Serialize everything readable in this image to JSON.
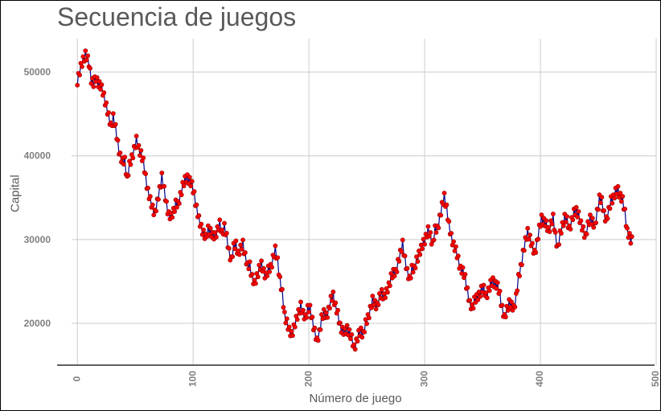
{
  "chart_data": {
    "type": "line",
    "title": "Secuencia de juegos",
    "xlabel": "Número de juego",
    "ylabel": "Capital",
    "xlim": [
      -5,
      500
    ],
    "ylim": [
      15000,
      54000
    ],
    "xticks": [
      0,
      100,
      200,
      300,
      400,
      500
    ],
    "yticks": [
      20000,
      30000,
      40000,
      50000
    ],
    "grid": true,
    "colors": {
      "line": "#00008b",
      "marker_fill": "#ff0000",
      "marker_edge": "#8b0000",
      "grid": "#cccccc"
    },
    "anchors_x": [
      0,
      2,
      5,
      7,
      10,
      12,
      14,
      16,
      18,
      20,
      23,
      25,
      27,
      29,
      31,
      33,
      35,
      37,
      39,
      41,
      43,
      45,
      47,
      49,
      51,
      53,
      55,
      57,
      59,
      61,
      63,
      65,
      67,
      69,
      71,
      73,
      75,
      77,
      79,
      81,
      83,
      85,
      87,
      89,
      91,
      93,
      95,
      97,
      99,
      101,
      103,
      105,
      107,
      109,
      111,
      113,
      115,
      117,
      119,
      121,
      123,
      125,
      127,
      129,
      131,
      133,
      135,
      137,
      139,
      141,
      143,
      145,
      147,
      149,
      151,
      153,
      155,
      157,
      159,
      161,
      163,
      165,
      167,
      169,
      171,
      173,
      175,
      177,
      179,
      181,
      183,
      185,
      187,
      189,
      191,
      193,
      195,
      197,
      199,
      201,
      203,
      205,
      207,
      209,
      211,
      213,
      215,
      217,
      219,
      221,
      223,
      225,
      227,
      229,
      231,
      233,
      235,
      237,
      239,
      241,
      243,
      245,
      247,
      249,
      251,
      253,
      255,
      257,
      259,
      261,
      263,
      265,
      267,
      269,
      271,
      273,
      275,
      277,
      279,
      281,
      283,
      285,
      287,
      289,
      291,
      293,
      295,
      297,
      299,
      301,
      303,
      305,
      307,
      309,
      311,
      313,
      315,
      317,
      319,
      321,
      323,
      325,
      327,
      329,
      331,
      333,
      335,
      337,
      339,
      341,
      343,
      345,
      347,
      349,
      351,
      353,
      355,
      357,
      359,
      361,
      363,
      365,
      367,
      369,
      371,
      373,
      375,
      377,
      379,
      381,
      383,
      385,
      387,
      389,
      391,
      393,
      395,
      397,
      399,
      401,
      403,
      405,
      407,
      409,
      411,
      413,
      415,
      417,
      419,
      421,
      423,
      425,
      427,
      429,
      431,
      433,
      435,
      437,
      439,
      441,
      443,
      445,
      447,
      449,
      451,
      453,
      455,
      457,
      459,
      461,
      463,
      465,
      467,
      469,
      471,
      473,
      475,
      477,
      479
    ],
    "anchors_y": [
      49000,
      50000,
      51500,
      52200,
      51000,
      49200,
      48600,
      49200,
      48800,
      48300,
      47200,
      46000,
      44600,
      43600,
      44700,
      43200,
      41500,
      40000,
      39200,
      39500,
      37200,
      38800,
      39800,
      40800,
      41800,
      40900,
      40300,
      39200,
      37500,
      35800,
      34600,
      33800,
      33200,
      34300,
      36000,
      37600,
      35800,
      34200,
      33000,
      32600,
      33400,
      34400,
      34000,
      35300,
      36500,
      37000,
      37400,
      37100,
      36400,
      35400,
      33800,
      32300,
      31500,
      30800,
      30100,
      31300,
      31000,
      30300,
      30500,
      31200,
      31800,
      30800,
      31600,
      30200,
      28600,
      27600,
      29000,
      29500,
      28300,
      28800,
      29600,
      28100,
      26700,
      27000,
      25500,
      24600,
      25600,
      26600,
      26900,
      26200,
      25700,
      26300,
      26700,
      27800,
      28700,
      27500,
      25200,
      23500,
      21000,
      20200,
      19000,
      18700,
      19500,
      20300,
      21300,
      22200,
      21000,
      20700,
      21800,
      21600,
      20400,
      19100,
      17700,
      18900,
      20700,
      21100,
      20900,
      21600,
      22700,
      23400,
      22100,
      21000,
      19700,
      19200,
      18800,
      19400,
      18900,
      18100,
      17100,
      17800,
      18600,
      19100,
      18700,
      19900,
      20700,
      21700,
      22700,
      22400,
      22100,
      23000,
      23700,
      23200,
      23600,
      24500,
      25600,
      25900,
      26100,
      27300,
      28200,
      29600,
      27700,
      26000,
      25300,
      26600,
      26300,
      27600,
      28300,
      28800,
      29700,
      30300,
      31000,
      30500,
      29500,
      31100,
      31300,
      32600,
      33900,
      35200,
      33800,
      31600,
      30400,
      29400,
      28600,
      27700,
      26500,
      26100,
      25500,
      23900,
      22200,
      21900,
      22800,
      22900,
      23400,
      24100,
      24000,
      23300,
      23900,
      24600,
      25100,
      24700,
      24300,
      23500,
      21800,
      20500,
      21700,
      22500,
      22000,
      21800,
      23200,
      25300,
      26700,
      28400,
      29700,
      31000,
      30200,
      29000,
      28400,
      29600,
      31200,
      32600,
      32200,
      31700,
      31100,
      31900,
      32500,
      30500,
      29000,
      30500,
      31700,
      32700,
      32200,
      31300,
      32300,
      33100,
      33500,
      33000,
      31700,
      31200,
      30400,
      31600,
      32600,
      32200,
      31400,
      33300,
      35000,
      34500,
      33100,
      32400,
      33300,
      34800,
      35000,
      35600,
      36000,
      35200,
      34600,
      33300,
      31000,
      30200,
      29600,
      29400,
      29000,
      29500,
      30000
    ]
  }
}
